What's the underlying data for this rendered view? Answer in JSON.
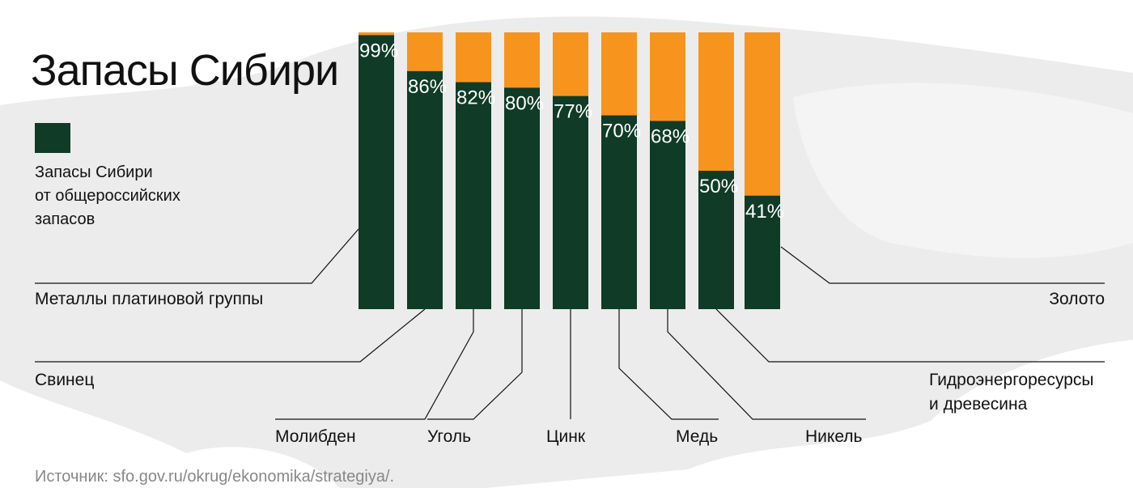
{
  "chart_data": {
    "type": "bar",
    "title": "Запасы Сибири",
    "categories": [
      "Металлы платиновой группы",
      "Свинец",
      "Молибден",
      "Уголь",
      "Цинк",
      "Медь",
      "Никель",
      "Гидроэнергоресурсы\nи древесина",
      "Золото"
    ],
    "series": [
      {
        "name": "Запасы Сибири\nот общероссийских\nзапасов",
        "color": "#0f3b27",
        "values": [
          99,
          86,
          82,
          80,
          77,
          70,
          68,
          50,
          41
        ],
        "value_labels": [
          "99%",
          "86%",
          "82%",
          "80%",
          "77%",
          "70%",
          "68%",
          "50%",
          "41%"
        ]
      }
    ],
    "track_color": "#f7941d",
    "ylim": [
      0,
      100
    ],
    "source": "Источник: sfo.gov.ru/okrug/ekonomika/strategiya/."
  }
}
